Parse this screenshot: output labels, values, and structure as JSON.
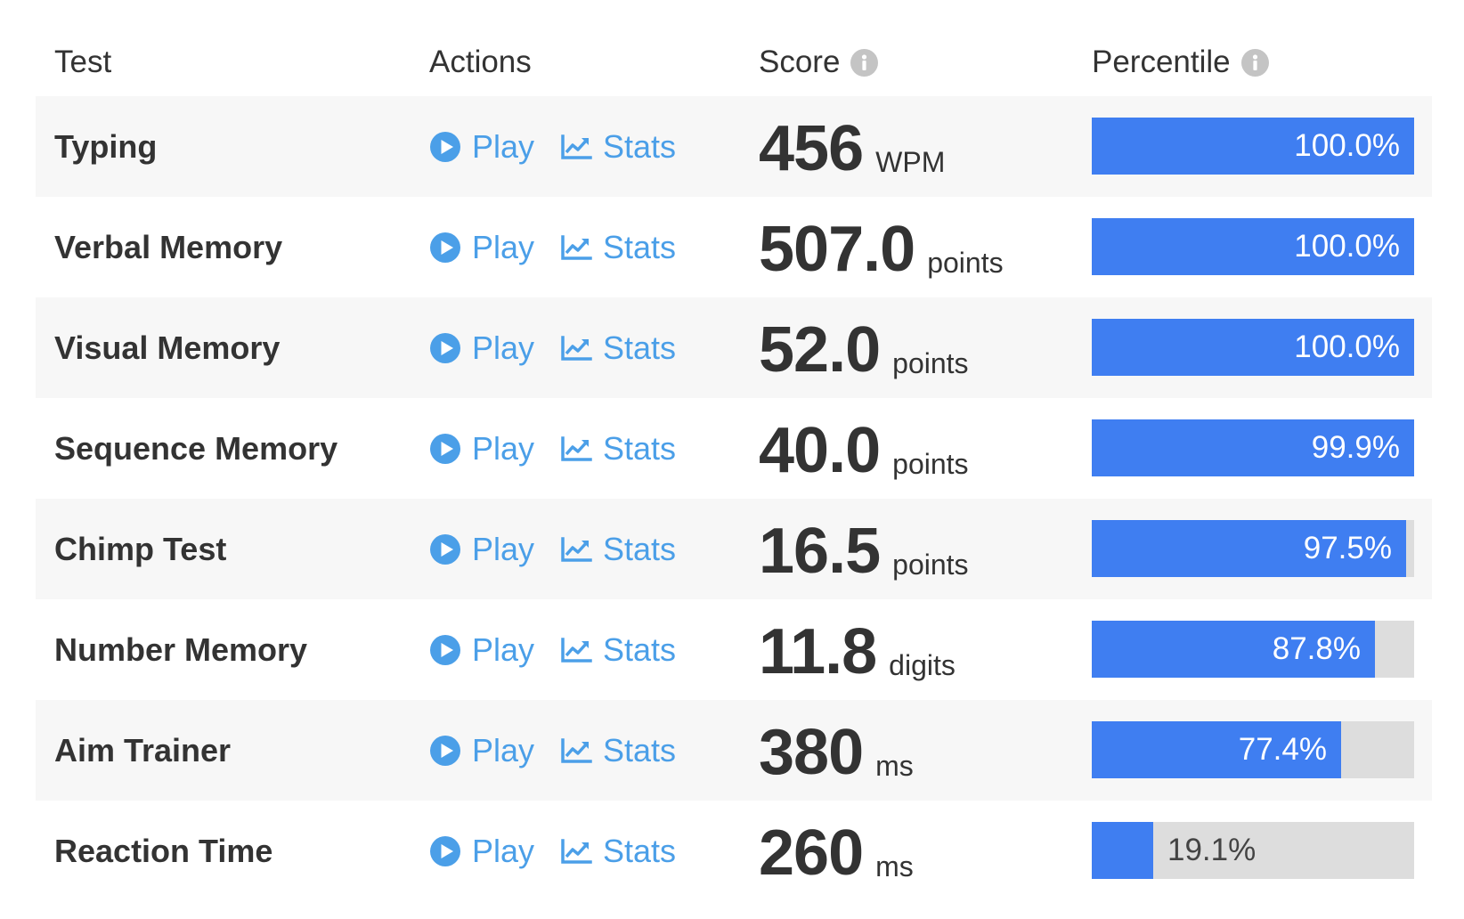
{
  "header": {
    "test": "Test",
    "actions": "Actions",
    "score": "Score",
    "percentile": "Percentile"
  },
  "colors": {
    "bar_fill": "#3f7ef1",
    "bar_track": "#dddddd",
    "link": "#4b9fe8",
    "row_shade": "#f7f7f7",
    "info_icon": "#c4c4c4"
  },
  "icons": {
    "play": "play-circle-icon",
    "stats": "line-chart-icon",
    "info": "info-icon"
  },
  "rows": [
    {
      "name": "Typing",
      "play": "Play",
      "stats": "Stats",
      "score": "456",
      "unit": "WPM",
      "percentile": 100.0,
      "percentile_label": "100.0%"
    },
    {
      "name": "Verbal Memory",
      "play": "Play",
      "stats": "Stats",
      "score": "507.0",
      "unit": "points",
      "percentile": 100.0,
      "percentile_label": "100.0%"
    },
    {
      "name": "Visual Memory",
      "play": "Play",
      "stats": "Stats",
      "score": "52.0",
      "unit": "points",
      "percentile": 100.0,
      "percentile_label": "100.0%"
    },
    {
      "name": "Sequence Memory",
      "play": "Play",
      "stats": "Stats",
      "score": "40.0",
      "unit": "points",
      "percentile": 99.9,
      "percentile_label": "99.9%"
    },
    {
      "name": "Chimp Test",
      "play": "Play",
      "stats": "Stats",
      "score": "16.5",
      "unit": "points",
      "percentile": 97.5,
      "percentile_label": "97.5%"
    },
    {
      "name": "Number Memory",
      "play": "Play",
      "stats": "Stats",
      "score": "11.8",
      "unit": "digits",
      "percentile": 87.8,
      "percentile_label": "87.8%"
    },
    {
      "name": "Aim Trainer",
      "play": "Play",
      "stats": "Stats",
      "score": "380",
      "unit": "ms",
      "percentile": 77.4,
      "percentile_label": "77.4%"
    },
    {
      "name": "Reaction Time",
      "play": "Play",
      "stats": "Stats",
      "score": "260",
      "unit": "ms",
      "percentile": 19.1,
      "percentile_label": "19.1%"
    }
  ]
}
